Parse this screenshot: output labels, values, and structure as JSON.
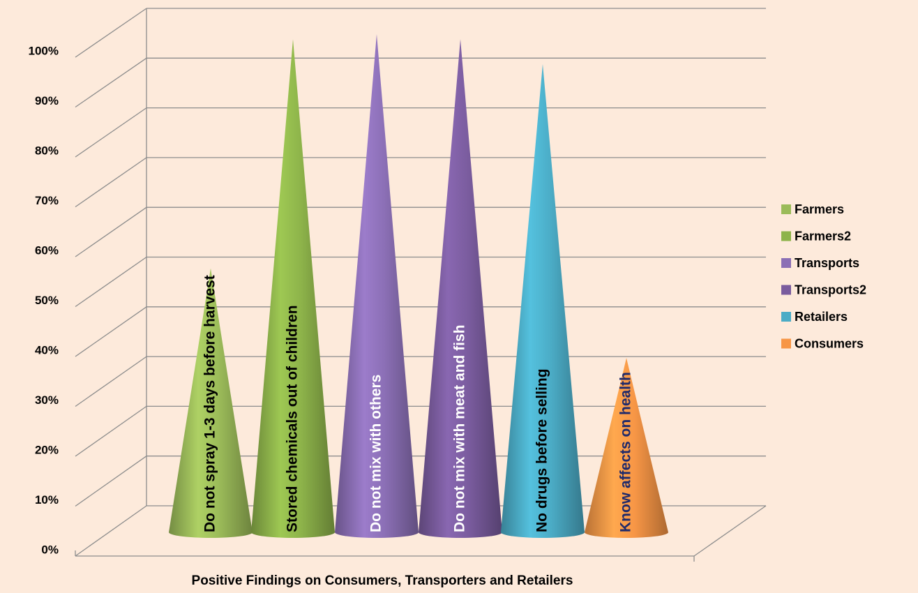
{
  "chart_data": {
    "type": "cone",
    "x_label": "Positive Findings on Consumers, Transporters and Retailers",
    "ylim": [
      0,
      100
    ],
    "yticks": [
      {
        "value": 0,
        "label": "0%"
      },
      {
        "value": 10,
        "label": "10%"
      },
      {
        "value": 20,
        "label": "20%"
      },
      {
        "value": 30,
        "label": "30%"
      },
      {
        "value": 40,
        "label": "40%"
      },
      {
        "value": 50,
        "label": "50%"
      },
      {
        "value": 60,
        "label": "60%"
      },
      {
        "value": 70,
        "label": "70%"
      },
      {
        "value": 80,
        "label": "80%"
      },
      {
        "value": 90,
        "label": "90%"
      },
      {
        "value": 100,
        "label": "100%"
      }
    ],
    "grid": true,
    "legend": "right",
    "series": [
      {
        "name": "Farmers",
        "color": "#9bbb59",
        "values": [
          53
        ]
      },
      {
        "name": "Farmers2",
        "color": "#8db34a",
        "values": [
          99
        ]
      },
      {
        "name": "Transports",
        "color": "#8b6fb5",
        "values": [
          100
        ]
      },
      {
        "name": "Transports2",
        "color": "#7a5c9e",
        "values": [
          99
        ]
      },
      {
        "name": "Retailers",
        "color": "#4bacc6",
        "values": [
          94
        ]
      },
      {
        "name": "Consumers",
        "color": "#f79646",
        "values": [
          35
        ]
      }
    ],
    "annotations": [
      {
        "text": "Do not spray 1-3 days before harvest",
        "color": "#000000"
      },
      {
        "text": "Stored chemicals  out of children",
        "color": "#000000"
      },
      {
        "text": "Do not mix with others",
        "color": "#ffffff"
      },
      {
        "text": "Do not mix with meat and fish",
        "color": "#ffffff"
      },
      {
        "text": "No drugs before selling",
        "color": "#000000"
      },
      {
        "text": "Know affects on health",
        "color": "#1f2a6b"
      }
    ]
  }
}
